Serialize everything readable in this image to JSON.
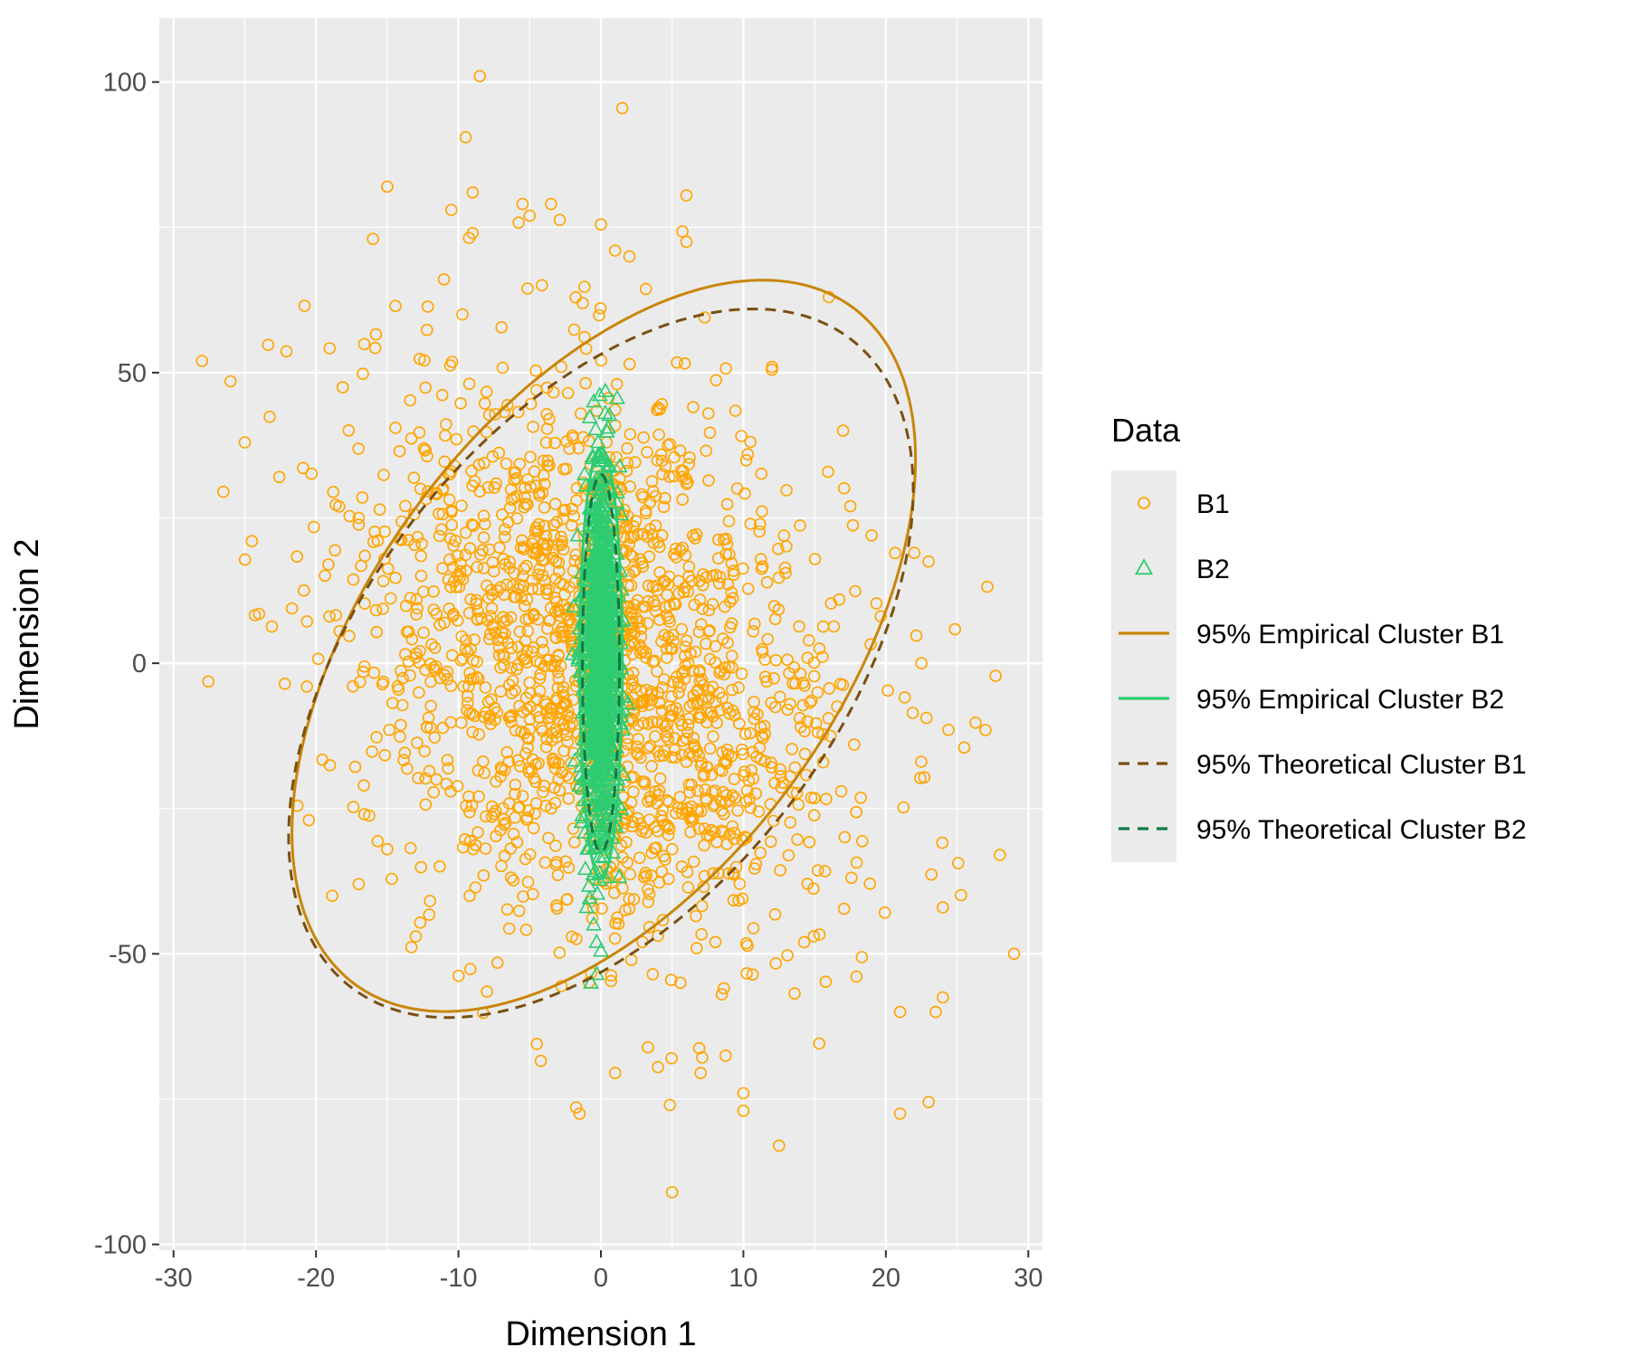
{
  "chart_data": {
    "type": "scatter",
    "title": "",
    "xlabel": "Dimension 1",
    "ylabel": "Dimension 2",
    "xlim": [
      -31,
      31
    ],
    "ylim": [
      -101,
      111
    ],
    "x_ticks": [
      -30,
      -20,
      -10,
      0,
      10,
      20,
      30
    ],
    "x_tick_labels": [
      "-30",
      "-20",
      "-10",
      "0",
      "10",
      "20",
      "30"
    ],
    "y_ticks": [
      -100,
      -50,
      0,
      50,
      100
    ],
    "y_tick_labels": [
      "-100",
      "-50",
      "0",
      "50",
      "100"
    ],
    "grid": true,
    "legend": {
      "title": "Data",
      "position": "right",
      "entries": [
        "B1",
        "B2",
        "95% Empirical Cluster B1",
        "95% Empirical Cluster B2",
        "95% Theoretical Cluster B1",
        "95% Theoretical Cluster B2"
      ]
    },
    "series": [
      {
        "name": "B1",
        "kind": "points",
        "marker": "circle",
        "color": "#FFA500",
        "n_generated": 1800,
        "center": [
          0,
          0
        ],
        "sd_x": 8.6,
        "sd_y": 24.5,
        "correlation": -0.26,
        "highlighted_points": [
          [
            -8.5,
            101
          ],
          [
            1.5,
            95.5
          ],
          [
            -9.5,
            90.5
          ],
          [
            -15,
            82
          ],
          [
            -9,
            81
          ],
          [
            6,
            80.5
          ],
          [
            -5.5,
            79
          ],
          [
            -3.5,
            79
          ],
          [
            -10.5,
            78
          ],
          [
            -5,
            77
          ],
          [
            0,
            75.5
          ],
          [
            -9,
            74
          ],
          [
            -16,
            73
          ],
          [
            6,
            72.5
          ],
          [
            1,
            71
          ],
          [
            2,
            70
          ],
          [
            16,
            63
          ],
          [
            -28,
            52
          ],
          [
            -26,
            48.5
          ],
          [
            12,
            50.5
          ],
          [
            -25,
            38
          ],
          [
            17,
            40
          ],
          [
            -24.5,
            21
          ],
          [
            -26.5,
            29.5
          ],
          [
            -24,
            8.5
          ],
          [
            22,
            19
          ],
          [
            23,
            17.5
          ],
          [
            22.5,
            0
          ],
          [
            27,
            -11.5
          ],
          [
            25.5,
            -14.5
          ],
          [
            28,
            -33
          ],
          [
            29,
            -50
          ],
          [
            24,
            -42
          ],
          [
            24,
            -57.5
          ],
          [
            23.5,
            -60
          ],
          [
            21,
            -60
          ],
          [
            -20.5,
            -27
          ],
          [
            -17,
            -38
          ],
          [
            -13,
            -47
          ],
          [
            -8,
            -56.5
          ],
          [
            -4.5,
            -65.5
          ],
          [
            -1.5,
            -77.5
          ],
          [
            1,
            -70.5
          ],
          [
            4,
            -69.5
          ],
          [
            7,
            -70.5
          ],
          [
            10,
            -74
          ],
          [
            10,
            -77
          ],
          [
            12.5,
            -83
          ],
          [
            5,
            -91
          ],
          [
            21,
            -77.5
          ],
          [
            23,
            -75.5
          ],
          [
            -15,
            -32
          ],
          [
            -17,
            25
          ],
          [
            19,
            22
          ]
        ]
      },
      {
        "name": "B2",
        "kind": "points",
        "marker": "triangle",
        "color": "#2ECC71",
        "n_generated": 900,
        "center": [
          0,
          0
        ],
        "sd_x": 0.6,
        "sd_y": 16.5,
        "correlation": 0.0,
        "highlighted_points": [
          [
            -0.5,
            45
          ],
          [
            0.3,
            43
          ],
          [
            0.5,
            40.5
          ],
          [
            -0.2,
            38
          ],
          [
            0,
            36
          ],
          [
            -1,
            -42
          ],
          [
            -0.5,
            -45
          ],
          [
            -0.3,
            -48
          ],
          [
            0,
            -49.5
          ],
          [
            -0.7,
            -55
          ]
        ]
      },
      {
        "name": "95% Empirical Cluster B1",
        "kind": "ellipse",
        "style": "solid",
        "color": "#C8860A",
        "center": [
          0.2,
          3
        ],
        "semi_axes": [
          18.5,
          64
        ],
        "rotation_deg": 11
      },
      {
        "name": "95% Empirical Cluster B2",
        "kind": "ellipse",
        "style": "solid",
        "color": "#2ECC71",
        "center": [
          0,
          0
        ],
        "semi_axes": [
          1.5,
          37
        ],
        "rotation_deg": 0
      },
      {
        "name": "95% Theoretical Cluster B1",
        "kind": "ellipse",
        "style": "dashed",
        "color": "#7A5012",
        "center": [
          0,
          0
        ],
        "semi_axes": [
          18.8,
          62
        ],
        "rotation_deg": 11
      },
      {
        "name": "95% Theoretical Cluster B2",
        "kind": "ellipse",
        "style": "dashed",
        "color": "#0E7A45",
        "center": [
          0,
          0
        ],
        "semi_axes": [
          1.3,
          32.5
        ],
        "rotation_deg": 0
      }
    ]
  }
}
